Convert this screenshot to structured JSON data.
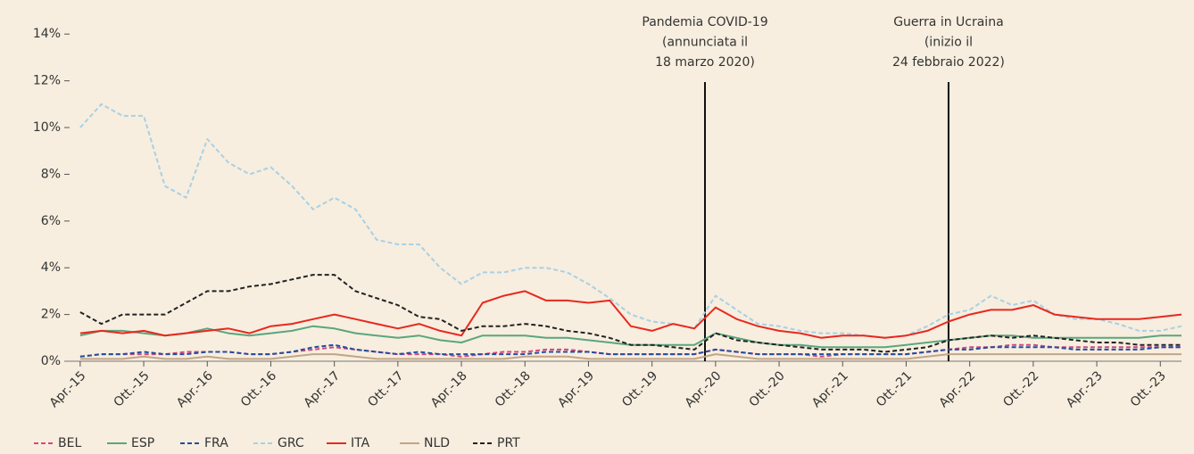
{
  "chart_data": {
    "type": "line",
    "x": [
      "2015-04",
      "2015-06",
      "2015-08",
      "2015-10",
      "2015-12",
      "2016-02",
      "2016-04",
      "2016-06",
      "2016-08",
      "2016-10",
      "2016-12",
      "2017-02",
      "2017-04",
      "2017-06",
      "2017-08",
      "2017-10",
      "2017-12",
      "2018-02",
      "2018-04",
      "2018-06",
      "2018-08",
      "2018-10",
      "2018-12",
      "2019-02",
      "2019-04",
      "2019-06",
      "2019-08",
      "2019-10",
      "2019-12",
      "2020-02",
      "2020-04",
      "2020-06",
      "2020-08",
      "2020-10",
      "2020-12",
      "2021-02",
      "2021-04",
      "2021-06",
      "2021-08",
      "2021-10",
      "2021-12",
      "2022-02",
      "2022-04",
      "2022-06",
      "2022-08",
      "2022-10",
      "2022-12",
      "2023-02",
      "2023-04",
      "2023-06",
      "2023-08",
      "2023-10",
      "2023-12"
    ],
    "xlim": [
      "2015-03",
      "2023-12"
    ],
    "xticks": [
      {
        "value": "2015-04",
        "label": "Apr.-15"
      },
      {
        "value": "2015-10",
        "label": "Ott.-15"
      },
      {
        "value": "2016-04",
        "label": "Apr.-16"
      },
      {
        "value": "2016-10",
        "label": "Ott.-16"
      },
      {
        "value": "2017-04",
        "label": "Apr.-17"
      },
      {
        "value": "2017-10",
        "label": "Ott.-17"
      },
      {
        "value": "2018-04",
        "label": "Apr.-18"
      },
      {
        "value": "2018-10",
        "label": "Ott.-18"
      },
      {
        "value": "2019-04",
        "label": "Apr.-19"
      },
      {
        "value": "2019-10",
        "label": "Ott.-19"
      },
      {
        "value": "2020-04",
        "label": "Apr.-20"
      },
      {
        "value": "2020-10",
        "label": "Ott.-20"
      },
      {
        "value": "2021-04",
        "label": "Apr.-21"
      },
      {
        "value": "2021-10",
        "label": "Ott.-21"
      },
      {
        "value": "2022-04",
        "label": "Apr.-22"
      },
      {
        "value": "2022-10",
        "label": "Ott.-22"
      },
      {
        "value": "2023-04",
        "label": "Apr.-23"
      },
      {
        "value": "2023-10",
        "label": "Ott.-23"
      }
    ],
    "ylim": [
      0,
      15
    ],
    "yticks": [
      {
        "value": 0,
        "label": "0%"
      },
      {
        "value": 2,
        "label": "2%"
      },
      {
        "value": 4,
        "label": "4%"
      },
      {
        "value": 6,
        "label": "6%"
      },
      {
        "value": 8,
        "label": "8%"
      },
      {
        "value": 10,
        "label": "10%"
      },
      {
        "value": 12,
        "label": "12%"
      },
      {
        "value": 14,
        "label": "14%"
      }
    ],
    "grid": false,
    "legend": "bottom-left",
    "annotations": [
      {
        "text": [
          "Pandemia COVID-19",
          "(annunciata il",
          "18 marzo 2020)"
        ],
        "x": "2020-03"
      },
      {
        "text": [
          "Guerra in Ucraina",
          "(inizio il",
          "24 febbraio 2022)"
        ],
        "x": "2022-02"
      }
    ],
    "series": [
      {
        "name": "BEL",
        "color": "#d6457e",
        "dashed": true,
        "values": [
          0.2,
          0.3,
          0.3,
          0.3,
          0.3,
          0.4,
          0.4,
          0.4,
          0.3,
          0.3,
          0.4,
          0.5,
          0.6,
          0.5,
          0.4,
          0.3,
          0.3,
          0.3,
          0.2,
          0.3,
          0.4,
          0.4,
          0.5,
          0.5,
          0.4,
          0.3,
          0.3,
          0.3,
          0.3,
          0.3,
          0.5,
          0.4,
          0.3,
          0.3,
          0.3,
          0.2,
          0.3,
          0.3,
          0.3,
          0.3,
          0.4,
          0.5,
          0.6,
          0.6,
          0.7,
          0.7,
          0.6,
          0.6,
          0.6,
          0.6,
          0.6,
          0.6,
          0.6
        ]
      },
      {
        "name": "ESP",
        "color": "#5aa67d",
        "dashed": false,
        "values": [
          1.1,
          1.3,
          1.3,
          1.2,
          1.1,
          1.2,
          1.4,
          1.2,
          1.1,
          1.2,
          1.3,
          1.5,
          1.4,
          1.2,
          1.1,
          1,
          1.1,
          0.9,
          0.8,
          1.1,
          1.1,
          1.1,
          1,
          1,
          0.9,
          0.8,
          0.7,
          0.7,
          0.7,
          0.7,
          1.2,
          1,
          0.8,
          0.7,
          0.7,
          0.6,
          0.6,
          0.6,
          0.6,
          0.7,
          0.8,
          0.9,
          1,
          1.1,
          1.1,
          1,
          1,
          1,
          1,
          1,
          1,
          1.1,
          1.1
        ]
      },
      {
        "name": "FRA",
        "color": "#1f4ea0",
        "dashed": true,
        "values": [
          0.2,
          0.3,
          0.3,
          0.4,
          0.3,
          0.3,
          0.4,
          0.4,
          0.3,
          0.3,
          0.4,
          0.6,
          0.7,
          0.5,
          0.4,
          0.3,
          0.4,
          0.3,
          0.3,
          0.3,
          0.3,
          0.3,
          0.4,
          0.4,
          0.4,
          0.3,
          0.3,
          0.3,
          0.3,
          0.3,
          0.5,
          0.4,
          0.3,
          0.3,
          0.3,
          0.3,
          0.3,
          0.3,
          0.3,
          0.3,
          0.4,
          0.5,
          0.5,
          0.6,
          0.6,
          0.6,
          0.6,
          0.5,
          0.5,
          0.5,
          0.5,
          0.6,
          0.6
        ]
      },
      {
        "name": "GRC",
        "color": "#a8d0e6",
        "dashed": true,
        "values": [
          10,
          11,
          10.5,
          10.5,
          7.5,
          7,
          9.5,
          8.5,
          8,
          8.3,
          7.5,
          6.5,
          7,
          6.5,
          5.2,
          5,
          5,
          4,
          3.3,
          3.8,
          3.8,
          4,
          4,
          3.8,
          3.3,
          2.7,
          2,
          1.7,
          1.6,
          1.4,
          2.8,
          2.2,
          1.6,
          1.5,
          1.3,
          1.2,
          1.2,
          1.1,
          1,
          1.1,
          1.5,
          2,
          2.2,
          2.8,
          2.4,
          2.6,
          2,
          1.8,
          1.8,
          1.6,
          1.3,
          1.3,
          1.5
        ]
      },
      {
        "name": "ITA",
        "color": "#e8281e",
        "dashed": false,
        "values": [
          1.2,
          1.3,
          1.2,
          1.3,
          1.1,
          1.2,
          1.3,
          1.4,
          1.2,
          1.5,
          1.6,
          1.8,
          2,
          1.8,
          1.6,
          1.4,
          1.6,
          1.3,
          1.1,
          2.5,
          2.8,
          3,
          2.6,
          2.6,
          2.5,
          2.6,
          1.5,
          1.3,
          1.6,
          1.4,
          2.3,
          1.8,
          1.5,
          1.3,
          1.2,
          1,
          1.1,
          1.1,
          1,
          1.1,
          1.3,
          1.7,
          2,
          2.2,
          2.2,
          2.4,
          2,
          1.9,
          1.8,
          1.8,
          1.8,
          1.9,
          2
        ]
      },
      {
        "name": "NLD",
        "color": "#c4a584",
        "dashed": false,
        "values": [
          0.1,
          0.1,
          0.1,
          0.2,
          0.1,
          0.1,
          0.2,
          0.1,
          0.1,
          0.1,
          0.2,
          0.3,
          0.3,
          0.2,
          0.1,
          0.1,
          0.1,
          0.1,
          0.1,
          0.1,
          0.1,
          0.2,
          0.2,
          0.2,
          0.1,
          0.1,
          0.1,
          0.1,
          0.1,
          0.1,
          0.3,
          0.2,
          0.1,
          0.1,
          0.1,
          0.1,
          0.1,
          0.1,
          0.1,
          0.1,
          0.2,
          0.3,
          0.3,
          0.3,
          0.3,
          0.3,
          0.3,
          0.3,
          0.3,
          0.3,
          0.3,
          0.3,
          0.3
        ]
      },
      {
        "name": "PRT",
        "color": "#222222",
        "dashed": true,
        "values": [
          2.1,
          1.6,
          2,
          2,
          2,
          2.5,
          3,
          3,
          3.2,
          3.3,
          3.5,
          3.7,
          3.7,
          3,
          2.7,
          2.4,
          1.9,
          1.8,
          1.3,
          1.5,
          1.5,
          1.6,
          1.5,
          1.3,
          1.2,
          1,
          0.7,
          0.7,
          0.6,
          0.5,
          1.2,
          0.9,
          0.8,
          0.7,
          0.6,
          0.5,
          0.5,
          0.5,
          0.4,
          0.5,
          0.6,
          0.9,
          1,
          1.1,
          1,
          1.1,
          1,
          0.9,
          0.8,
          0.8,
          0.7,
          0.7,
          0.7
        ]
      }
    ]
  }
}
